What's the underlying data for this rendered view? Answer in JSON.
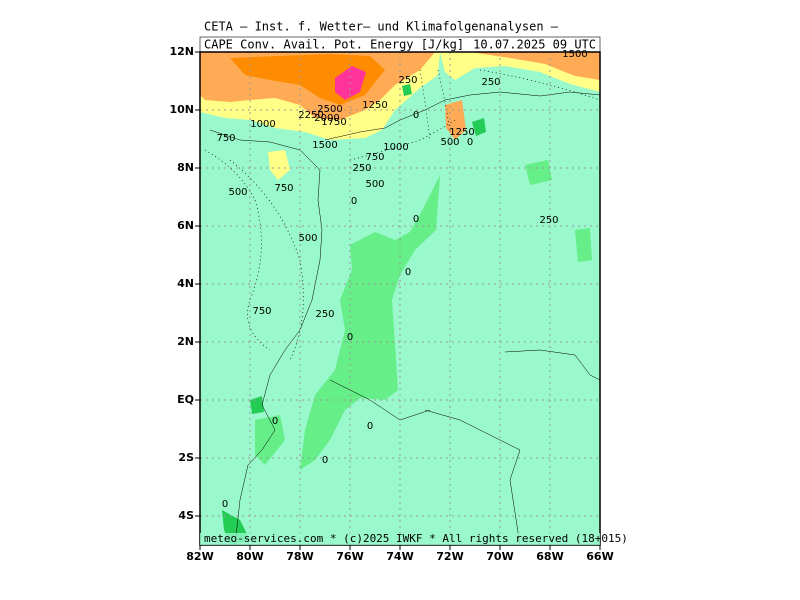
{
  "header": {
    "line1": "CETA — Inst. f. Wetter— und Klimafolgenanalysen —",
    "field": "CAPE  Conv. Avail. Pot. Energy [J/kg]",
    "time": "10.07.2025  09  UTC"
  },
  "footer": "meteo-services.com * (c)2025 IWKF * All rights reserved (18+015)",
  "map": {
    "lon_range": [
      -82,
      -66
    ],
    "lat_range": [
      -5,
      12
    ],
    "lon_ticks": [
      {
        "value": -82,
        "label": "82W"
      },
      {
        "value": -80,
        "label": "80W"
      },
      {
        "value": -78,
        "label": "78W"
      },
      {
        "value": -76,
        "label": "76W"
      },
      {
        "value": -74,
        "label": "74W"
      },
      {
        "value": -72,
        "label": "72W"
      },
      {
        "value": -70,
        "label": "70W"
      },
      {
        "value": -68,
        "label": "68W"
      },
      {
        "value": -66,
        "label": "66W"
      }
    ],
    "lat_ticks": [
      {
        "value": 12,
        "label": "12N"
      },
      {
        "value": 10,
        "label": "10N"
      },
      {
        "value": 8,
        "label": "8N"
      },
      {
        "value": 6,
        "label": "6N"
      },
      {
        "value": 4,
        "label": "4N"
      },
      {
        "value": 2,
        "label": "2N"
      },
      {
        "value": 0,
        "label": "EQ"
      },
      {
        "value": -2,
        "label": "2S"
      },
      {
        "value": -4,
        "label": "4S"
      }
    ],
    "grid": true,
    "contour_labels": [
      1500,
      250,
      250,
      1250,
      2500,
      2250,
      2000,
      1750,
      1000,
      0,
      750,
      1500,
      1000,
      1250,
      500,
      0,
      750,
      250,
      500,
      500,
      750,
      0,
      0,
      250,
      500,
      0,
      750,
      250,
      0,
      0,
      0,
      0,
      0
    ]
  }
}
